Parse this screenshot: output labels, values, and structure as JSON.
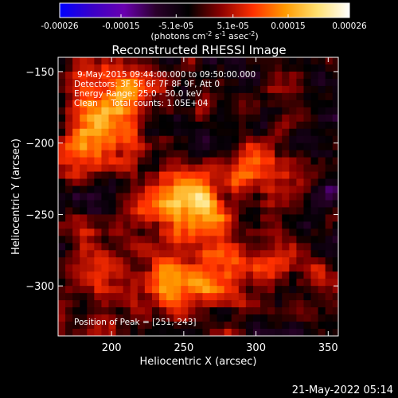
{
  "chart_data": {
    "type": "heatmap",
    "title": "Reconstructed RHESSI Image",
    "xlabel": "Heliocentric X (arcsec)",
    "ylabel": "Heliocentric Y (arcsec)",
    "xlim": [
      163,
      357
    ],
    "ylim": [
      -335,
      -140
    ],
    "xticks": [
      200,
      250,
      300,
      350
    ],
    "yticks": [
      -150,
      -200,
      -250,
      -300
    ],
    "colorbar": {
      "ticks": [
        "-0.00026",
        "-0.00015",
        "-5.1e-05",
        "5.1e-05",
        "0.00015",
        "0.00026"
      ],
      "tick_values": [
        -0.00026,
        -0.00015,
        -5.1e-05,
        5.1e-05,
        0.00015,
        0.00026
      ],
      "range": [
        -0.00026,
        0.00026
      ],
      "unit_parts": [
        "(photons cm",
        "-2",
        " s",
        "-1",
        " asec",
        "-2",
        ")"
      ],
      "colors": [
        "#0000ff",
        "#3a00c8",
        "#6a00b0",
        "#2a002a",
        "#000000",
        "#8a0000",
        "#ff3000",
        "#ff9a00",
        "#ffe070",
        "#ffffff"
      ]
    },
    "annotations": [
      "9-May-2015 09:44:00.000 to 09:50:00.000",
      "Detectors: 3F 5F 6F 7F 8F 9F, Att 0",
      "Energy Range: 25.0 - 50.0 keV",
      "Clean     Total counts: 1.05E+04"
    ],
    "peak_label": "Position of Peak = [251,-243]",
    "peak": [
      251,
      -243
    ],
    "sources": [
      {
        "x": 251,
        "y": -243,
        "sx": 20,
        "sy": 15,
        "amp": 0.000255
      },
      {
        "x": 190,
        "y": -190,
        "sx": 16,
        "sy": 17,
        "amp": 0.00019
      },
      {
        "x": 205,
        "y": -160,
        "sx": 18,
        "sy": 10,
        "amp": 0.00014
      },
      {
        "x": 300,
        "y": -215,
        "sx": 16,
        "sy": 12,
        "amp": 0.0001
      },
      {
        "x": 280,
        "y": -290,
        "sx": 35,
        "sy": 14,
        "amp": 0.00012
      },
      {
        "x": 185,
        "y": -290,
        "sx": 14,
        "sy": 16,
        "amp": 9e-05
      },
      {
        "x": 240,
        "y": -300,
        "sx": 25,
        "sy": 12,
        "amp": 9e-05
      }
    ]
  },
  "footer": {
    "timestamp": "21-May-2022 05:14"
  }
}
